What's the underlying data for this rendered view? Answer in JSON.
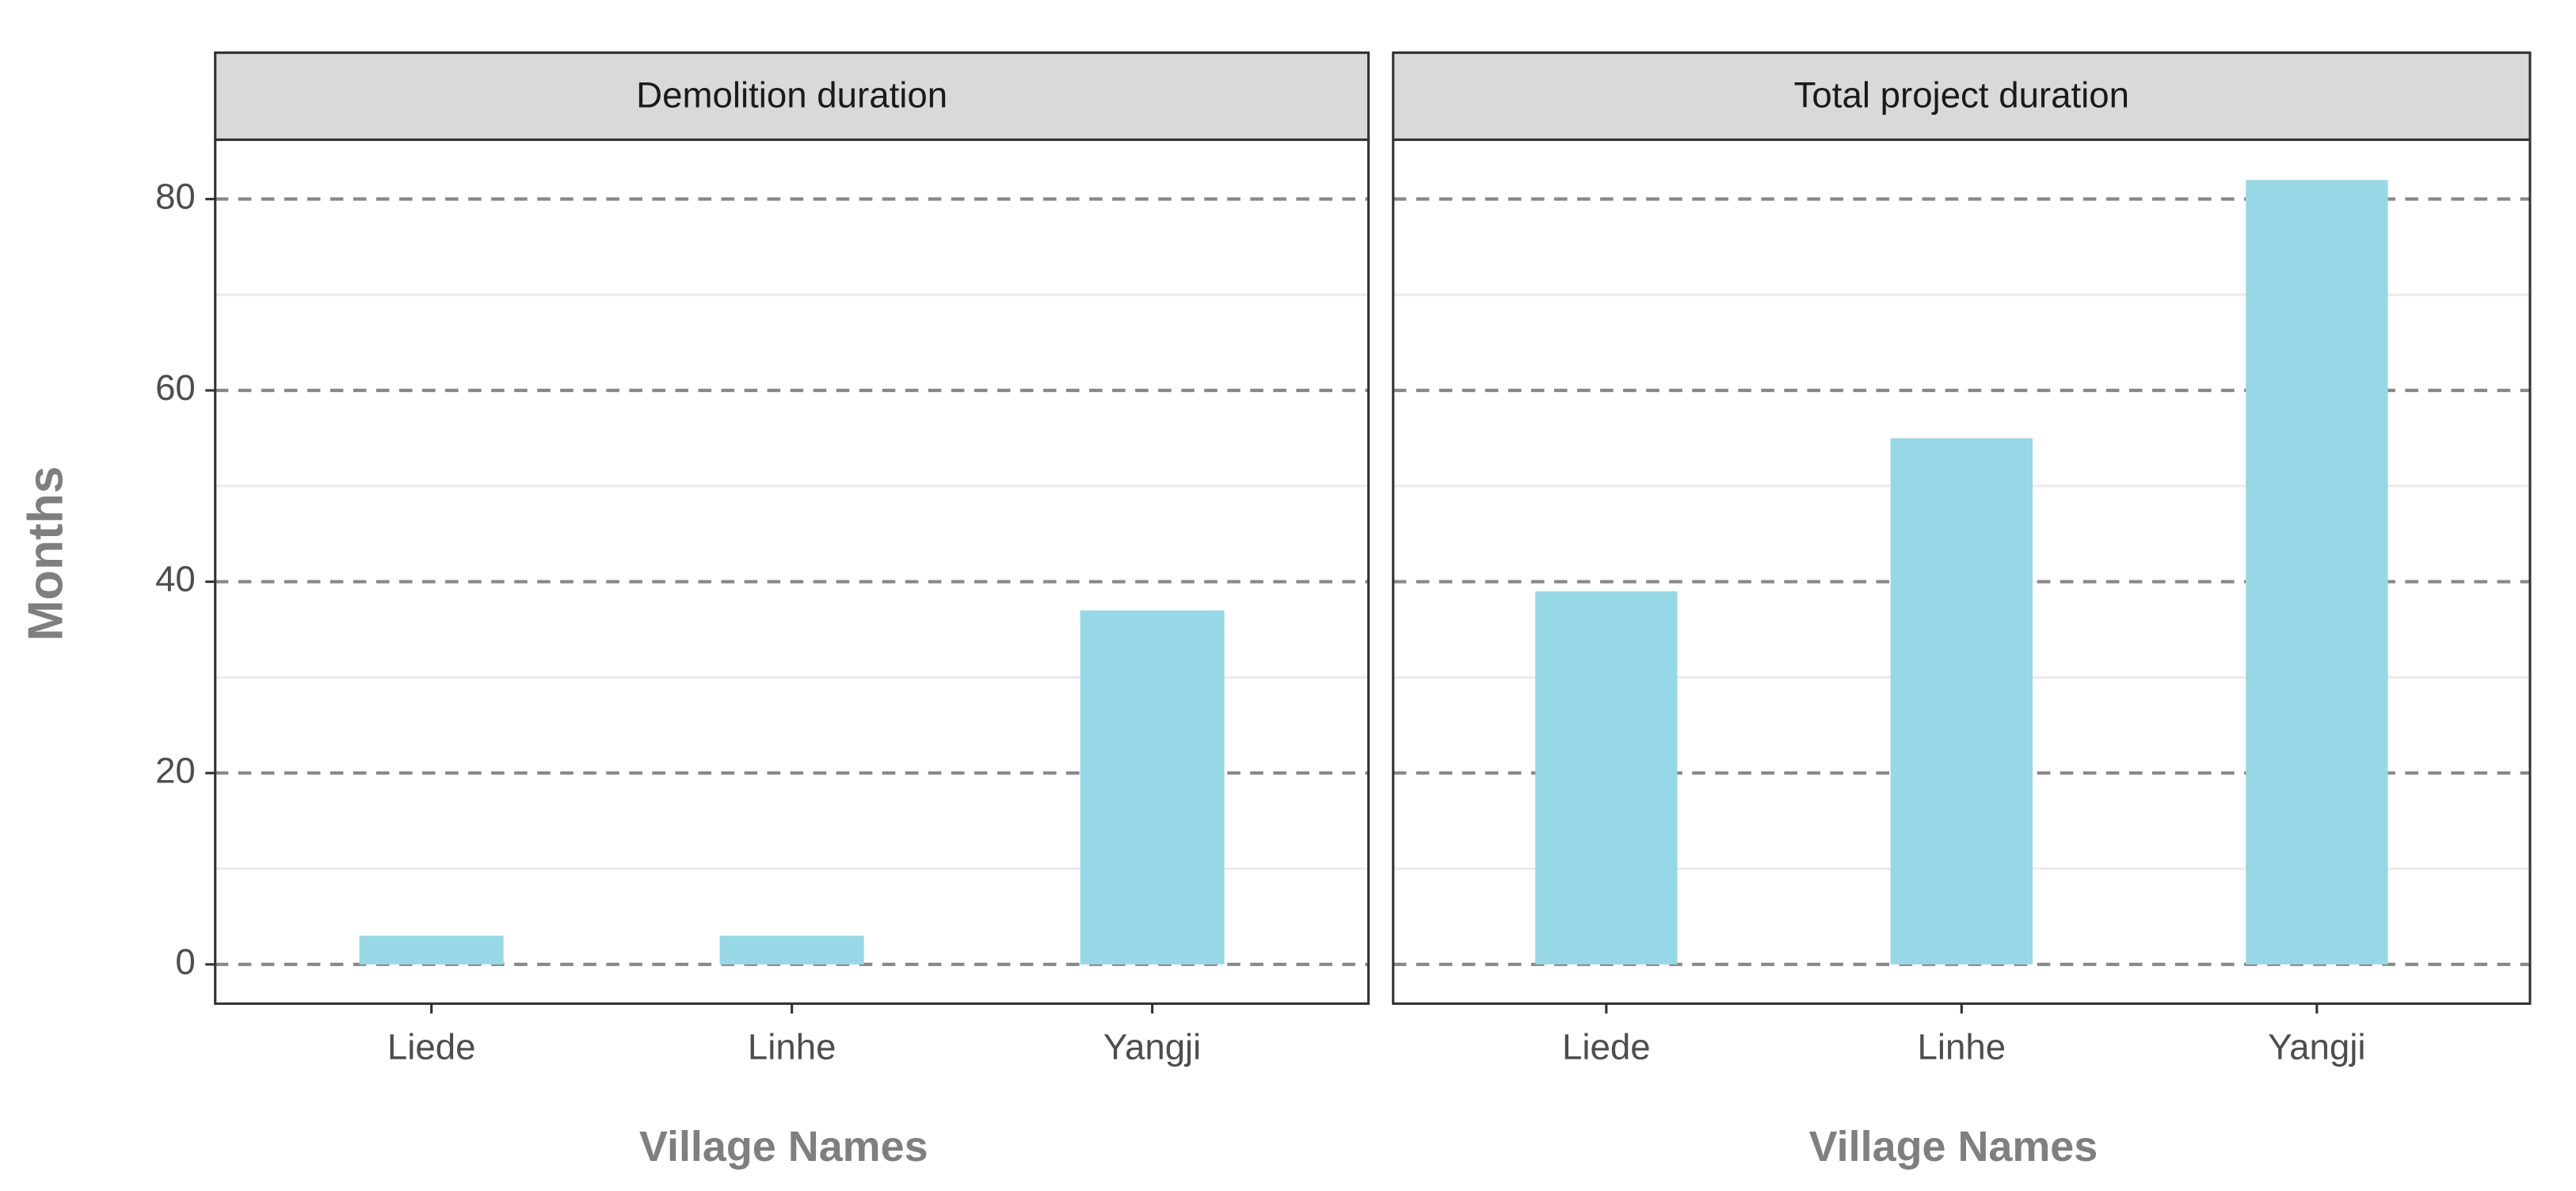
{
  "chart_data": [
    {
      "type": "bar",
      "title": "Demolition duration",
      "ylabel": "Months",
      "xlabel": "Village Names",
      "categories": [
        "Liede",
        "Linhe",
        "Yangji"
      ],
      "values": [
        3,
        3,
        37
      ],
      "color": "#98d8e6",
      "ylim": [
        -4.1,
        86.2
      ],
      "yticks": [
        0,
        20,
        40,
        60,
        80
      ],
      "minor_yticks": [
        10,
        30,
        50,
        70
      ],
      "grid": true
    },
    {
      "type": "bar",
      "title": "Total project duration",
      "xlabel": "Village Names",
      "categories": [
        "Liede",
        "Linhe",
        "Yangji"
      ],
      "values": [
        39,
        55,
        82
      ],
      "color": "#98d8e6",
      "ylim": [
        -4.1,
        86.2
      ],
      "yticks": [
        0,
        20,
        40,
        60,
        80
      ],
      "minor_yticks": [
        10,
        30,
        50,
        70
      ],
      "grid": true
    }
  ]
}
